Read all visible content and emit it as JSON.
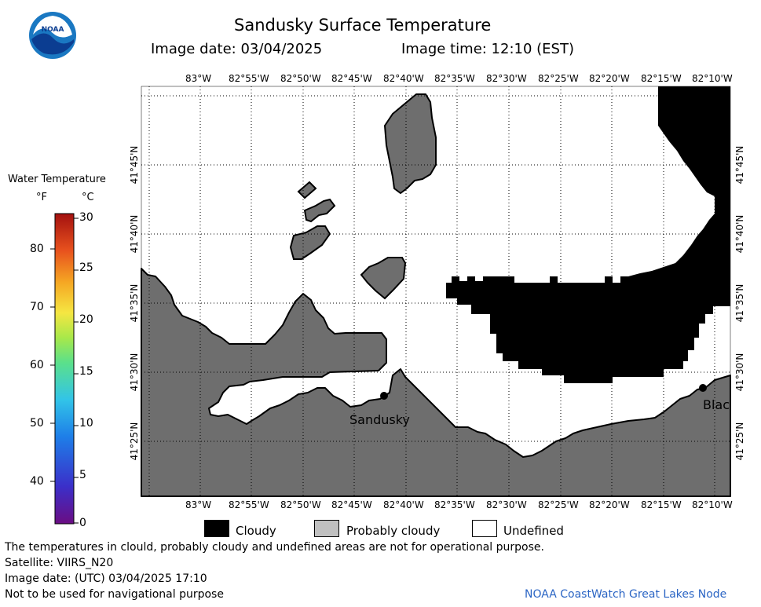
{
  "header": {
    "title": "Sandusky Surface Temperature",
    "image_date": "Image date: 03/04/2025",
    "image_time": "Image time: 12:10 (EST)"
  },
  "logo": {
    "text": "NOAA",
    "colors": {
      "outer": "#1a78c2",
      "inner": "#ffffff",
      "band": "#0b3d91"
    }
  },
  "map": {
    "lon_labels": [
      "83°W",
      "82°55'W",
      "82°50'W",
      "82°45'W",
      "82°40'W",
      "82°35'W",
      "82°30'W",
      "82°25'W",
      "82°20'W",
      "82°15'W",
      "82°10'W"
    ],
    "lat_labels": [
      "41°45'N",
      "41°40'N",
      "41°35'N",
      "41°30'N",
      "41°25'N"
    ],
    "places": [
      {
        "name": "Sandusky"
      },
      {
        "name": "Blac"
      }
    ],
    "colors": {
      "land": "#6e6e6e",
      "cloud": "#000000",
      "undefined": "#ffffff",
      "grid": "#000000"
    }
  },
  "colorbar": {
    "title": "Water Temperature",
    "unit_f": "°F",
    "unit_c": "°C",
    "f_ticks": [
      "80",
      "70",
      "60",
      "50",
      "40"
    ],
    "c_ticks": [
      "30",
      "25",
      "20",
      "15",
      "10",
      "5",
      "0"
    ],
    "colors": [
      "#6a0d83",
      "#3b2fc9",
      "#1e7ee8",
      "#32c4e8",
      "#5be08a",
      "#a8e84a",
      "#f5e642",
      "#f5a623",
      "#e8521e",
      "#a3100f"
    ]
  },
  "legend": {
    "items": [
      {
        "label": "Cloudy",
        "color": "#000000"
      },
      {
        "label": "Probably cloudy",
        "color": "#c0c0c0"
      },
      {
        "label": "Undefined",
        "color": "#ffffff"
      }
    ]
  },
  "footer": {
    "disclaimer": "The temperatures in clould, probably cloudy and undefined areas are not for operational purpose.",
    "satellite": "Satellite: VIIRS_N20",
    "utc_date": "Image date: (UTC) 03/04/2025  17:10",
    "nav_note": "Not to be used for navigational purpose",
    "credit": "NOAA CoastWatch Great Lakes Node",
    "credit_color": "#2b65c4"
  }
}
